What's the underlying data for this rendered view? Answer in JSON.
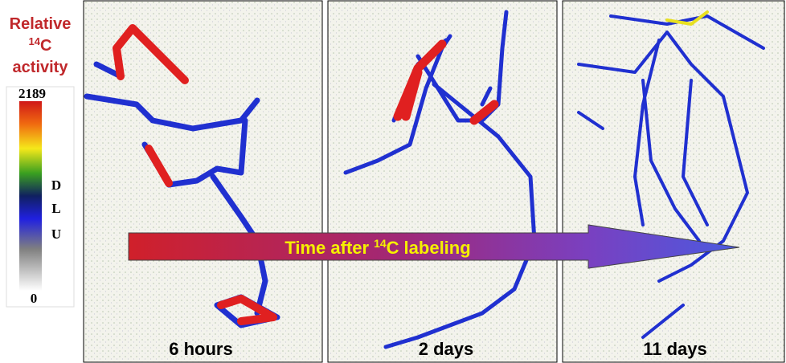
{
  "legend": {
    "title_line1": "Relative",
    "isotope_mass": "14",
    "isotope_symbol": "C",
    "title_line3": "activity",
    "scale_max": 2189,
    "scale_min": 0,
    "unit_letters": [
      "D",
      "L",
      "U"
    ]
  },
  "arrow": {
    "text_before": "Time after",
    "isotope_mass": "14",
    "isotope_symbol": "C",
    "text_after": "labeling"
  },
  "panels": [
    {
      "label": "6 hours"
    },
    {
      "label": "2 days"
    },
    {
      "label": "11 days"
    }
  ]
}
